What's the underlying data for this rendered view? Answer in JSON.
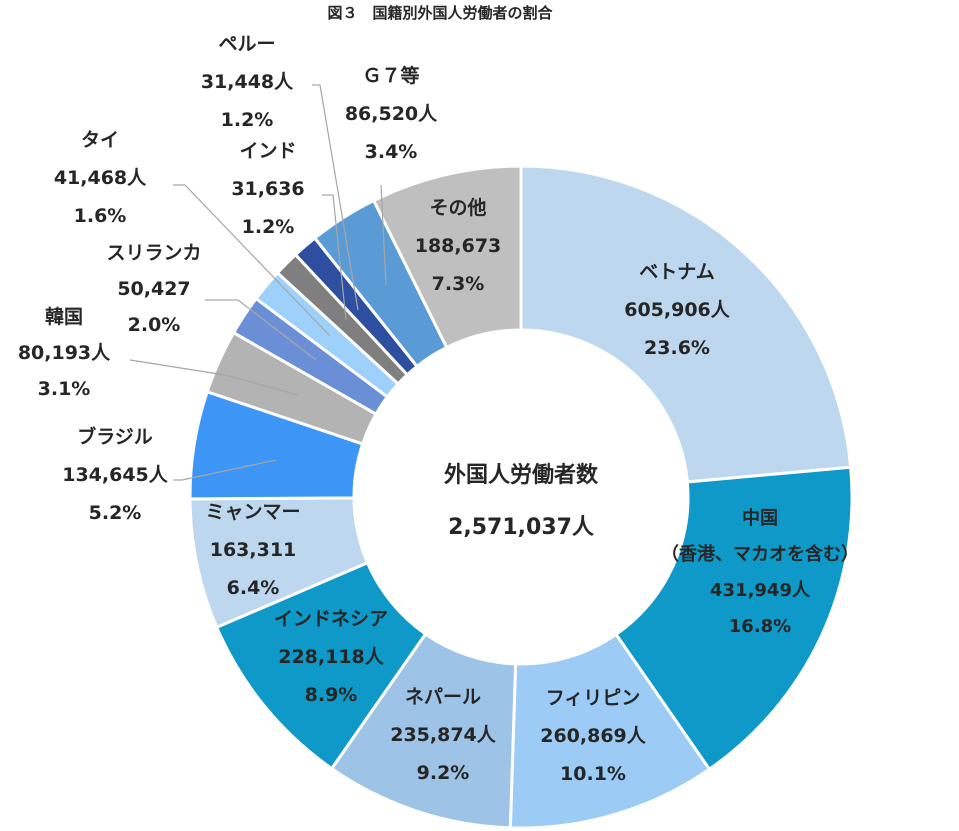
{
  "chart_data": {
    "type": "pie",
    "title": "図３　国籍別外国人労働者の割合",
    "center": {
      "label": "外国人労働者数",
      "value": "2,571,037人"
    },
    "segments": [
      {
        "name": "ベトナム",
        "lines": [
          "ベトナム",
          "605,906人",
          "23.6%"
        ],
        "value": 605906,
        "percent": 23.6,
        "color": "#bdd7ee"
      },
      {
        "name": "中国（香港、マカオを含む）",
        "lines": [
          "中国",
          "（香港、マカオを含む）",
          "431,949人",
          "16.8%"
        ],
        "value": 431949,
        "percent": 16.8,
        "color": "#0f99c8"
      },
      {
        "name": "フィリピン",
        "lines": [
          "フィリピン",
          "260,869人",
          "10.1%"
        ],
        "value": 260869,
        "percent": 10.1,
        "color": "#9ccbf5"
      },
      {
        "name": "ネパール",
        "lines": [
          "ネパール",
          "235,874人",
          "9.2%"
        ],
        "value": 235874,
        "percent": 9.2,
        "color": "#9dc3e6"
      },
      {
        "name": "インドネシア",
        "lines": [
          "インドネシア",
          "228,118人",
          "8.9%"
        ],
        "value": 228118,
        "percent": 8.9,
        "color": "#0f99c8"
      },
      {
        "name": "ミャンマー",
        "lines": [
          "ミャンマー",
          "163,311",
          "6.4%"
        ],
        "value": 163311,
        "percent": 6.4,
        "color": "#bdd7ee"
      },
      {
        "name": "ブラジル",
        "lines": [
          "ブラジル",
          "134,645人",
          "5.2%"
        ],
        "value": 134645,
        "percent": 5.2,
        "color": "#3d95f5"
      },
      {
        "name": "韓国",
        "lines": [
          "韓国",
          "80,193人",
          "3.1%"
        ],
        "value": 80193,
        "percent": 3.1,
        "color": "#b3b3b3"
      },
      {
        "name": "スリランカ",
        "lines": [
          "スリランカ",
          "50,427",
          "2.0%"
        ],
        "value": 50427,
        "percent": 2.0,
        "color": "#6b8fd6"
      },
      {
        "name": "タイ",
        "lines": [
          "タイ",
          "41,468人",
          "1.6%"
        ],
        "value": 41468,
        "percent": 1.6,
        "color": "#9dd0fa"
      },
      {
        "name": "インド",
        "lines": [
          "インド",
          "31,636",
          "1.2%"
        ],
        "value": 31636,
        "percent": 1.2,
        "color": "#7f7f7f"
      },
      {
        "name": "ペルー",
        "lines": [
          "ペルー",
          "31,448人",
          "1.2%"
        ],
        "value": 31448,
        "percent": 1.2,
        "color": "#2e4f9f"
      },
      {
        "name": "Ｇ７等",
        "lines": [
          "Ｇ７等",
          "86,520人",
          "3.4%"
        ],
        "value": 86520,
        "percent": 3.4,
        "color": "#5b9bd5"
      },
      {
        "name": "その他",
        "lines": [
          "その他",
          "188,673",
          "7.3%"
        ],
        "value": 188673,
        "percent": 7.3,
        "color": "#bfbfbf"
      }
    ]
  }
}
